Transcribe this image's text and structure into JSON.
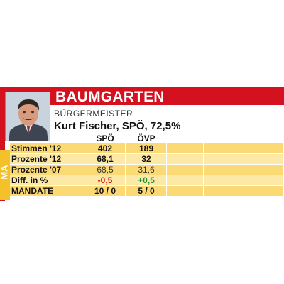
{
  "header": {
    "title": "BAUMGARTEN"
  },
  "region_label": "MA",
  "role": "BÜRGERMEISTER",
  "mayor": "Kurt Fischer, SPÖ, 72,5%",
  "table": {
    "columns": [
      "SPÖ",
      "ÖVP"
    ],
    "rows": [
      {
        "label": "Stimmen '12",
        "values": [
          "402",
          "189"
        ]
      },
      {
        "label": "Prozente '12",
        "values": [
          "68,1",
          "32"
        ]
      },
      {
        "label": "Prozente '07",
        "values": [
          "68,5",
          "31,6"
        ]
      },
      {
        "label": "Diff. in %",
        "values": [
          "-0,5",
          "+0,5"
        ]
      },
      {
        "label": "MANDATE",
        "values": [
          "10 / 0",
          "5 / 0"
        ]
      }
    ]
  },
  "colors": {
    "red": "#d4111f",
    "yellow": "#f4c12a",
    "row_light": "#fde9a6",
    "row_dark": "#fbd975",
    "negative": "#d4111f",
    "positive": "#1e8f2e"
  }
}
